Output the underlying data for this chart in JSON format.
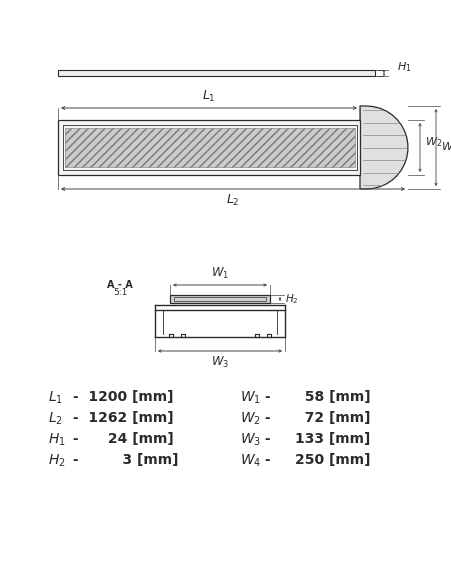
{
  "bg_color": "#ffffff",
  "line_color": "#2a2a2a",
  "dim_color": "#444444",
  "specs_left": [
    [
      "L",
      "1",
      "1200"
    ],
    [
      "L",
      "2",
      "1262"
    ],
    [
      "H",
      "1",
      "24"
    ],
    [
      "H",
      "2",
      "3"
    ]
  ],
  "specs_right": [
    [
      "W",
      "1",
      "58"
    ],
    [
      "W",
      "2",
      "72"
    ],
    [
      "W",
      "3",
      "133"
    ],
    [
      "W",
      "4",
      "250"
    ]
  ]
}
